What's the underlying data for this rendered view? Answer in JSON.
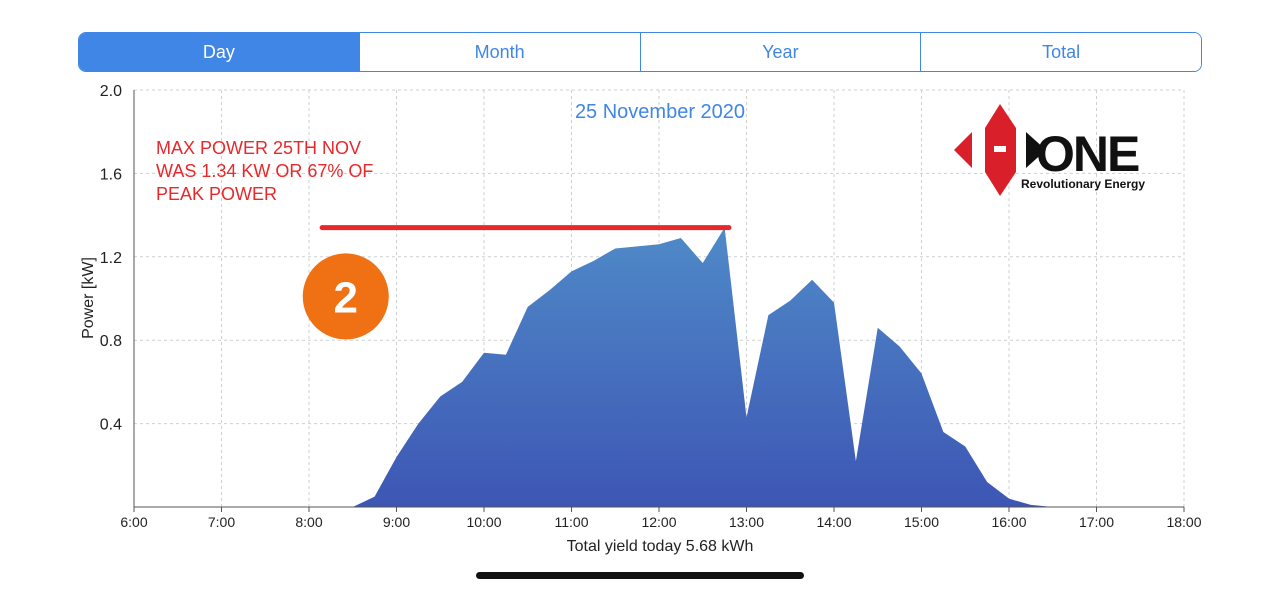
{
  "tabs": [
    {
      "label": "Day",
      "active": true
    },
    {
      "label": "Month",
      "active": false
    },
    {
      "label": "Year",
      "active": false
    },
    {
      "label": "Total",
      "active": false
    }
  ],
  "colors": {
    "accent": "#3f86e6",
    "area_top": "#4f8ac8",
    "area_bottom": "#3d56b4",
    "annotation": "#e8282b",
    "badge": "#f07014"
  },
  "annotation": {
    "text_lines": [
      "MAX POWER 25TH NOV",
      "WAS 1.34 KW OR 67% OF",
      "PEAK POWER"
    ],
    "max_line_value": 1.34,
    "max_line_x": [
      8.15,
      12.8
    ],
    "badge_number": "2",
    "badge_position": [
      8.42,
      1.01
    ]
  },
  "logo": {
    "word": "ONE",
    "tagline": "Revolutionary Energy"
  },
  "chart_data": {
    "type": "area",
    "title": "25 November 2020",
    "xlabel": "Total yield today 5.68 kWh",
    "ylabel": "Power [kW]",
    "xlim": [
      6,
      18
    ],
    "ylim": [
      0,
      2.0
    ],
    "x_ticks": [
      {
        "v": 6,
        "label": "6:00"
      },
      {
        "v": 7,
        "label": "7:00"
      },
      {
        "v": 8,
        "label": "8:00"
      },
      {
        "v": 9,
        "label": "9:00"
      },
      {
        "v": 10,
        "label": "10:00"
      },
      {
        "v": 11,
        "label": "11:00"
      },
      {
        "v": 12,
        "label": "12:00"
      },
      {
        "v": 13,
        "label": "13:00"
      },
      {
        "v": 14,
        "label": "14:00"
      },
      {
        "v": 15,
        "label": "15:00"
      },
      {
        "v": 16,
        "label": "16:00"
      },
      {
        "v": 17,
        "label": "17:00"
      },
      {
        "v": 18,
        "label": "18:00"
      }
    ],
    "y_ticks": [
      {
        "v": 0.4,
        "label": "0.4"
      },
      {
        "v": 0.8,
        "label": "0.8"
      },
      {
        "v": 1.2,
        "label": "1.2"
      },
      {
        "v": 1.6,
        "label": "1.6"
      },
      {
        "v": 2.0,
        "label": "2.0"
      }
    ],
    "grid": true,
    "x": [
      8.5,
      8.75,
      9.0,
      9.25,
      9.5,
      9.75,
      10.0,
      10.25,
      10.5,
      10.75,
      11.0,
      11.25,
      11.5,
      11.75,
      12.0,
      12.25,
      12.5,
      12.75,
      13.0,
      13.25,
      13.5,
      13.75,
      14.0,
      14.25,
      14.5,
      14.75,
      15.0,
      15.25,
      15.5,
      15.75,
      16.0,
      16.25,
      16.5,
      16.75
    ],
    "y": [
      0.0,
      0.05,
      0.24,
      0.4,
      0.53,
      0.6,
      0.74,
      0.73,
      0.96,
      1.04,
      1.13,
      1.18,
      1.24,
      1.25,
      1.26,
      1.29,
      1.17,
      1.34,
      0.43,
      0.92,
      0.99,
      1.09,
      0.98,
      0.22,
      0.86,
      0.77,
      0.64,
      0.36,
      0.29,
      0.12,
      0.04,
      0.01,
      0.0,
      0.0
    ]
  }
}
